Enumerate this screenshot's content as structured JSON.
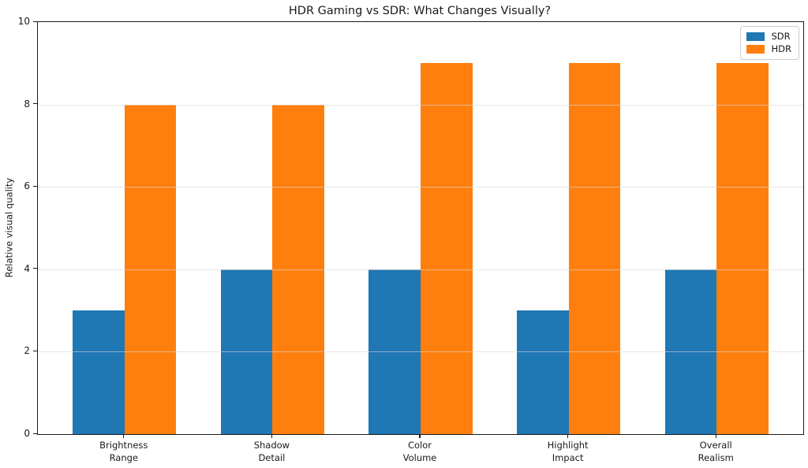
{
  "chart_data": {
    "type": "bar",
    "title": "HDR Gaming vs SDR: What Changes Visually?",
    "xlabel": "",
    "ylabel": "Relative visual quality",
    "categories": [
      "Brightness\nRange",
      "Shadow\nDetail",
      "Color\nVolume",
      "Highlight\nImpact",
      "Overall\nRealism"
    ],
    "series": [
      {
        "name": "SDR",
        "color": "#1f77b4",
        "values": [
          3,
          4,
          4,
          3,
          4
        ]
      },
      {
        "name": "HDR",
        "color": "#ff7f0e",
        "values": [
          8,
          8,
          9,
          9,
          9
        ]
      }
    ],
    "ylim": [
      0,
      10
    ],
    "yticks": [
      0,
      2,
      4,
      6,
      8,
      10
    ],
    "grid": "horizontal light-gray gridlines at y ticks",
    "legend_position": "upper right",
    "bar_group_layout": "grouped pairs, SDR left of HDR, touching"
  }
}
